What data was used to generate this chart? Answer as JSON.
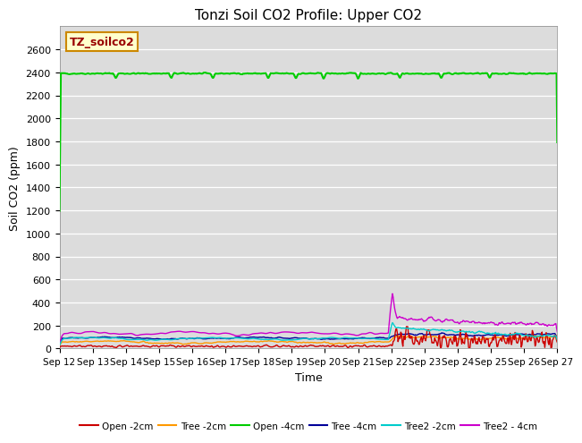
{
  "title": "Tonzi Soil CO2 Profile: Upper CO2",
  "xlabel": "Time",
  "ylabel": "Soil CO2 (ppm)",
  "ylim": [
    0,
    2800
  ],
  "yticks": [
    0,
    200,
    400,
    600,
    800,
    1000,
    1200,
    1400,
    1600,
    1800,
    2000,
    2200,
    2400,
    2600
  ],
  "bg_color": "#dcdcdc",
  "legend_label": "TZ_soilco2",
  "legend_box_color": "#ffffcc",
  "legend_box_edge": "#cc8800",
  "series": {
    "Open_2cm": {
      "color": "#cc0000",
      "label": "Open -2cm"
    },
    "Tree_2cm": {
      "color": "#ff9900",
      "label": "Tree -2cm"
    },
    "Open_4cm": {
      "color": "#00cc00",
      "label": "Open -4cm"
    },
    "Tree_4cm": {
      "color": "#000099",
      "label": "Tree -4cm"
    },
    "Tree2_2cm": {
      "color": "#00cccc",
      "label": "Tree2 -2cm"
    },
    "Tree2_4cm": {
      "color": "#cc00cc",
      "label": "Tree2 - 4cm"
    }
  }
}
